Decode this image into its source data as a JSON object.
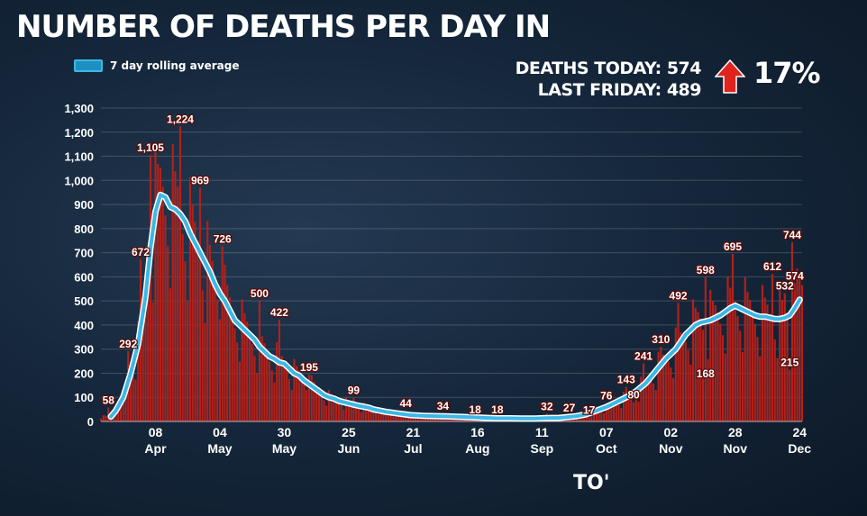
{
  "header": {
    "title": "NUMBER OF DEATHS PER DAY IN",
    "deaths_today": "DEATHS TODAY: 574",
    "last_friday": "LAST FRIDAY: 489",
    "change_pct": "17%",
    "arrow_icon": "up-arrow-icon"
  },
  "footer_fragment": "TO'",
  "colors": {
    "bars": "#b3211b",
    "rolling_line": "#3cb8e6",
    "arrow": "#e0231c"
  },
  "chart_data": {
    "type": "bar",
    "title": "NUMBER OF DEATHS PER DAY IN",
    "ylim": [
      0,
      1300
    ],
    "yticks": [
      0,
      100,
      200,
      300,
      400,
      500,
      600,
      700,
      800,
      900,
      1000,
      1100,
      1200,
      1300
    ],
    "ytick_labels": [
      "0",
      "100",
      "200",
      "300",
      "400",
      "500",
      "600",
      "700",
      "800",
      "900",
      "1,000",
      "1,100",
      "1,200",
      "1,300"
    ],
    "grid": true,
    "x_range_days": [
      0,
      283
    ],
    "xticks": [
      {
        "day": 22,
        "label": [
          "08",
          "Apr"
        ]
      },
      {
        "day": 48,
        "label": [
          "04",
          "May"
        ]
      },
      {
        "day": 74,
        "label": [
          "30",
          "May"
        ]
      },
      {
        "day": 100,
        "label": [
          "25",
          "Jun"
        ]
      },
      {
        "day": 126,
        "label": [
          "21",
          "Jul"
        ]
      },
      {
        "day": 152,
        "label": [
          "16",
          "Aug"
        ]
      },
      {
        "day": 178,
        "label": [
          "11",
          "Sep"
        ]
      },
      {
        "day": 204,
        "label": [
          "07",
          "Oct"
        ]
      },
      {
        "day": 230,
        "label": [
          "02",
          "Nov"
        ]
      },
      {
        "day": 256,
        "label": [
          "28",
          "Nov"
        ]
      },
      {
        "day": 282,
        "label": [
          "24",
          "Dec"
        ]
      }
    ],
    "series": [
      {
        "name": "7 day rolling average",
        "type": "line",
        "points": [
          [
            4,
            20
          ],
          [
            6,
            45
          ],
          [
            9,
            100
          ],
          [
            12,
            200
          ],
          [
            15,
            320
          ],
          [
            18,
            520
          ],
          [
            20,
            720
          ],
          [
            22,
            870
          ],
          [
            24,
            940
          ],
          [
            26,
            930
          ],
          [
            28,
            890
          ],
          [
            30,
            880
          ],
          [
            32,
            860
          ],
          [
            34,
            830
          ],
          [
            36,
            780
          ],
          [
            38,
            740
          ],
          [
            40,
            700
          ],
          [
            42,
            660
          ],
          [
            44,
            620
          ],
          [
            46,
            570
          ],
          [
            48,
            530
          ],
          [
            50,
            500
          ],
          [
            52,
            460
          ],
          [
            54,
            420
          ],
          [
            56,
            400
          ],
          [
            58,
            380
          ],
          [
            60,
            360
          ],
          [
            62,
            340
          ],
          [
            64,
            310
          ],
          [
            66,
            290
          ],
          [
            68,
            270
          ],
          [
            70,
            260
          ],
          [
            72,
            245
          ],
          [
            74,
            240
          ],
          [
            76,
            220
          ],
          [
            78,
            200
          ],
          [
            80,
            190
          ],
          [
            82,
            170
          ],
          [
            84,
            155
          ],
          [
            86,
            140
          ],
          [
            88,
            125
          ],
          [
            90,
            110
          ],
          [
            92,
            100
          ],
          [
            94,
            95
          ],
          [
            96,
            85
          ],
          [
            98,
            80
          ],
          [
            100,
            75
          ],
          [
            102,
            70
          ],
          [
            104,
            65
          ],
          [
            108,
            57
          ],
          [
            110,
            50
          ],
          [
            115,
            40
          ],
          [
            120,
            33
          ],
          [
            125,
            26
          ],
          [
            130,
            23
          ],
          [
            135,
            22
          ],
          [
            140,
            21
          ],
          [
            145,
            19
          ],
          [
            150,
            17
          ],
          [
            155,
            15
          ],
          [
            160,
            13
          ],
          [
            165,
            13
          ],
          [
            170,
            12
          ],
          [
            175,
            12
          ],
          [
            180,
            14
          ],
          [
            185,
            15
          ],
          [
            188,
            18
          ],
          [
            192,
            22
          ],
          [
            196,
            30
          ],
          [
            200,
            45
          ],
          [
            204,
            60
          ],
          [
            208,
            80
          ],
          [
            212,
            100
          ],
          [
            216,
            125
          ],
          [
            220,
            160
          ],
          [
            224,
            210
          ],
          [
            228,
            260
          ],
          [
            232,
            300
          ],
          [
            234,
            330
          ],
          [
            236,
            360
          ],
          [
            238,
            380
          ],
          [
            240,
            400
          ],
          [
            242,
            410
          ],
          [
            244,
            415
          ],
          [
            246,
            420
          ],
          [
            248,
            430
          ],
          [
            250,
            440
          ],
          [
            252,
            455
          ],
          [
            254,
            470
          ],
          [
            256,
            480
          ],
          [
            258,
            470
          ],
          [
            260,
            460
          ],
          [
            262,
            450
          ],
          [
            264,
            440
          ],
          [
            266,
            435
          ],
          [
            268,
            435
          ],
          [
            270,
            430
          ],
          [
            272,
            425
          ],
          [
            274,
            425
          ],
          [
            276,
            430
          ],
          [
            278,
            440
          ],
          [
            280,
            470
          ],
          [
            282,
            505
          ]
        ]
      }
    ],
    "data_labels": [
      {
        "day": 3,
        "value": 58,
        "label": "58"
      },
      {
        "day": 11,
        "value": 292,
        "label": "292"
      },
      {
        "day": 16,
        "value": 672,
        "label": "672"
      },
      {
        "day": 20,
        "value": 1105,
        "label": "1,105"
      },
      {
        "day": 32,
        "value": 1224,
        "label": "1,224"
      },
      {
        "day": 40,
        "value": 969,
        "label": "969"
      },
      {
        "day": 49,
        "value": 726,
        "label": "726"
      },
      {
        "day": 64,
        "value": 500,
        "label": "500"
      },
      {
        "day": 72,
        "value": 422,
        "label": "422"
      },
      {
        "day": 84,
        "value": 195,
        "label": "195"
      },
      {
        "day": 102,
        "value": 99,
        "label": "99"
      },
      {
        "day": 123,
        "value": 44,
        "label": "44"
      },
      {
        "day": 138,
        "value": 34,
        "label": "34"
      },
      {
        "day": 151,
        "value": 18,
        "label": "18"
      },
      {
        "day": 160,
        "value": 18,
        "label": "18"
      },
      {
        "day": 180,
        "value": 32,
        "label": "32"
      },
      {
        "day": 189,
        "value": 27,
        "label": "27"
      },
      {
        "day": 197,
        "value": 17,
        "label": "17"
      },
      {
        "day": 204,
        "value": 76,
        "label": "76"
      },
      {
        "day": 212,
        "value": 143,
        "label": "143"
      },
      {
        "day": 215,
        "value": 80,
        "label": "80"
      },
      {
        "day": 219,
        "value": 241,
        "label": "241"
      },
      {
        "day": 226,
        "value": 310,
        "label": "310"
      },
      {
        "day": 233,
        "value": 492,
        "label": "492"
      },
      {
        "day": 244,
        "value": 598,
        "label": "598"
      },
      {
        "day": 244,
        "value": 168,
        "label": "168"
      },
      {
        "day": 255,
        "value": 695,
        "label": "695"
      },
      {
        "day": 271,
        "value": 612,
        "label": "612"
      },
      {
        "day": 276,
        "value": 532,
        "label": "532"
      },
      {
        "day": 280,
        "value": 574,
        "label": "574"
      },
      {
        "day": 279,
        "value": 744,
        "label": "744"
      },
      {
        "day": 278,
        "value": 215,
        "label": "215"
      }
    ]
  }
}
